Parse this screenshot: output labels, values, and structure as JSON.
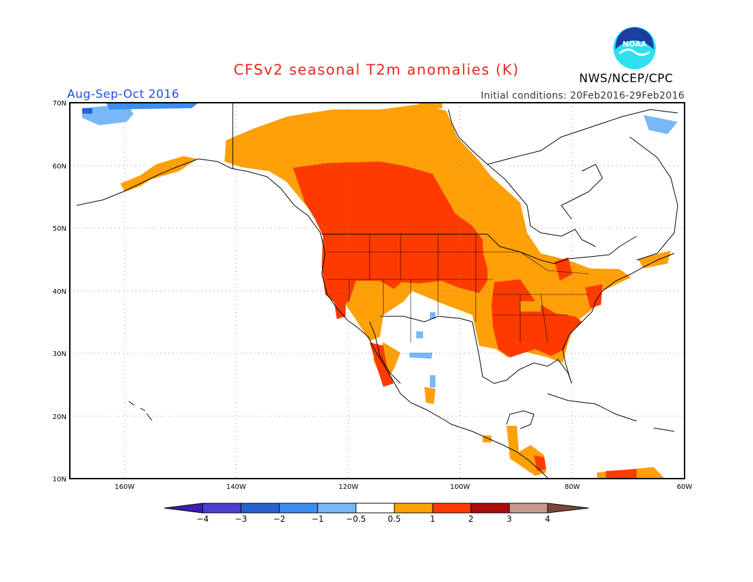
{
  "header": {
    "title": "CFSv2 seasonal T2m anomalies (K)",
    "season": "Aug-Sep-Oct 2016",
    "initial_conditions": "Initial conditions: 20Feb2016-29Feb2016",
    "agency": "NWS/NCEP/CPC",
    "logo_text": "NOAA"
  },
  "map": {
    "lon_range": [
      -170,
      -60
    ],
    "lat_range": [
      10,
      70
    ],
    "lon_labels": [
      "160W",
      "140W",
      "120W",
      "100W",
      "80W",
      "60W"
    ],
    "lat_labels": [
      "10N",
      "20N",
      "30N",
      "40N",
      "50N",
      "60N",
      "70N"
    ]
  },
  "legend": {
    "tick_labels": [
      "-4",
      "-3",
      "-2",
      "-1",
      "-0.5",
      "0.5",
      "1",
      "2",
      "3",
      "4"
    ],
    "colors": [
      "#3b1fb0",
      "#4a3fd0",
      "#2a63cf",
      "#3d8ef2",
      "#78b8f7",
      "#ffffff",
      "#ffa008",
      "#ff3a00",
      "#a80d0d",
      "#c39a8c",
      "#7a4838"
    ]
  }
}
